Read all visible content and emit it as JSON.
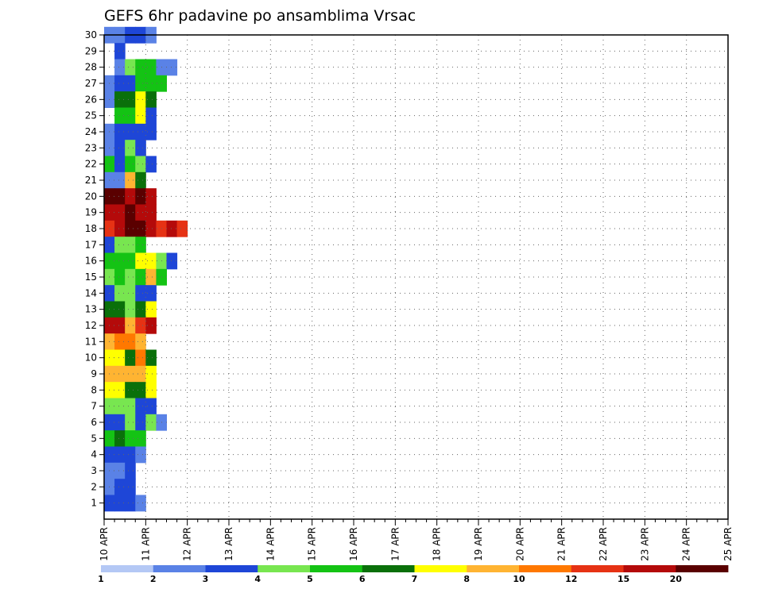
{
  "chart_data": {
    "type": "heatmap",
    "title": "GEFS 6hr padavine po ansamblima Vrsac",
    "x_tick_labels": [
      "10 APR",
      "11 APR",
      "12 APR",
      "13 APR",
      "14 APR",
      "15 APR",
      "16 APR",
      "17 APR",
      "18 APR",
      "19 APR",
      "20 APR",
      "21 APR",
      "22 APR",
      "23 APR",
      "24 APR",
      "25 APR"
    ],
    "y_tick_labels": [
      "1",
      "2",
      "3",
      "4",
      "5",
      "6",
      "7",
      "8",
      "9",
      "10",
      "11",
      "12",
      "13",
      "14",
      "15",
      "16",
      "17",
      "18",
      "19",
      "20",
      "21",
      "22",
      "23",
      "24",
      "25",
      "26",
      "27",
      "28",
      "29",
      "30"
    ],
    "x_range": [
      "10 APR",
      "25 APR"
    ],
    "y_range": [
      0,
      30
    ],
    "grid": true,
    "columns_per_day": 4,
    "colorbar": {
      "levels": [
        "1",
        "2",
        "3",
        "4",
        "5",
        "6",
        "7",
        "8",
        "10",
        "12",
        "15",
        "20"
      ],
      "colors": [
        "#b4c8f5",
        "#5a82e6",
        "#1e46d7",
        "#78e650",
        "#14c314",
        "#0a700a",
        "#ffff00",
        "#ffb432",
        "#ff7800",
        "#e63214",
        "#b40a0a",
        "#5a0000"
      ]
    },
    "cells": [
      [
        0,
        30,
        1
      ],
      [
        1,
        30,
        1
      ],
      [
        2,
        30,
        2
      ],
      [
        3,
        30,
        2
      ],
      [
        4,
        30,
        1
      ],
      [
        1,
        29,
        2
      ],
      [
        1,
        28,
        1
      ],
      [
        2,
        28,
        3
      ],
      [
        3,
        28,
        4
      ],
      [
        4,
        28,
        4
      ],
      [
        5,
        28,
        1
      ],
      [
        6,
        28,
        1
      ],
      [
        0,
        27,
        1
      ],
      [
        1,
        27,
        2
      ],
      [
        2,
        27,
        2
      ],
      [
        3,
        27,
        4
      ],
      [
        4,
        27,
        4
      ],
      [
        5,
        27,
        4
      ],
      [
        0,
        26,
        1
      ],
      [
        1,
        26,
        5
      ],
      [
        2,
        26,
        5
      ],
      [
        3,
        26,
        6
      ],
      [
        4,
        26,
        5
      ],
      [
        1,
        25,
        4
      ],
      [
        2,
        25,
        4
      ],
      [
        3,
        25,
        6
      ],
      [
        4,
        25,
        2
      ],
      [
        0,
        24,
        1
      ],
      [
        1,
        24,
        2
      ],
      [
        2,
        24,
        2
      ],
      [
        3,
        24,
        2
      ],
      [
        4,
        24,
        2
      ],
      [
        0,
        23,
        1
      ],
      [
        1,
        23,
        2
      ],
      [
        2,
        23,
        3
      ],
      [
        3,
        23,
        2
      ],
      [
        0,
        22,
        4
      ],
      [
        1,
        22,
        2
      ],
      [
        2,
        22,
        4
      ],
      [
        3,
        22,
        3
      ],
      [
        4,
        22,
        2
      ],
      [
        0,
        21,
        1
      ],
      [
        1,
        21,
        1
      ],
      [
        2,
        21,
        7
      ],
      [
        3,
        21,
        5
      ],
      [
        0,
        20,
        11
      ],
      [
        1,
        20,
        11
      ],
      [
        2,
        20,
        10
      ],
      [
        3,
        20,
        11
      ],
      [
        4,
        20,
        10
      ],
      [
        0,
        19,
        10
      ],
      [
        1,
        19,
        10
      ],
      [
        2,
        19,
        11
      ],
      [
        3,
        19,
        10
      ],
      [
        4,
        19,
        10
      ],
      [
        0,
        18,
        9
      ],
      [
        1,
        18,
        10
      ],
      [
        2,
        18,
        11
      ],
      [
        3,
        18,
        11
      ],
      [
        4,
        18,
        10
      ],
      [
        5,
        18,
        9
      ],
      [
        6,
        18,
        10
      ],
      [
        7,
        18,
        9
      ],
      [
        0,
        17,
        2
      ],
      [
        1,
        17,
        3
      ],
      [
        2,
        17,
        3
      ],
      [
        3,
        17,
        4
      ],
      [
        0,
        16,
        4
      ],
      [
        1,
        16,
        4
      ],
      [
        2,
        16,
        4
      ],
      [
        3,
        16,
        6
      ],
      [
        4,
        16,
        6
      ],
      [
        5,
        16,
        3
      ],
      [
        6,
        16,
        2
      ],
      [
        0,
        15,
        3
      ],
      [
        1,
        15,
        4
      ],
      [
        2,
        15,
        3
      ],
      [
        3,
        15,
        4
      ],
      [
        4,
        15,
        7
      ],
      [
        5,
        15,
        4
      ],
      [
        0,
        14,
        2
      ],
      [
        1,
        14,
        3
      ],
      [
        2,
        14,
        3
      ],
      [
        3,
        14,
        2
      ],
      [
        4,
        14,
        2
      ],
      [
        0,
        13,
        5
      ],
      [
        1,
        13,
        5
      ],
      [
        2,
        13,
        3
      ],
      [
        3,
        13,
        5
      ],
      [
        4,
        13,
        6
      ],
      [
        0,
        12,
        10
      ],
      [
        1,
        12,
        10
      ],
      [
        2,
        12,
        7
      ],
      [
        3,
        12,
        9
      ],
      [
        4,
        12,
        10
      ],
      [
        0,
        11,
        7
      ],
      [
        1,
        11,
        8
      ],
      [
        2,
        11,
        8
      ],
      [
        3,
        11,
        7
      ],
      [
        0,
        10,
        6
      ],
      [
        1,
        10,
        6
      ],
      [
        2,
        10,
        5
      ],
      [
        3,
        10,
        8
      ],
      [
        4,
        10,
        5
      ],
      [
        0,
        9,
        7
      ],
      [
        1,
        9,
        7
      ],
      [
        2,
        9,
        7
      ],
      [
        3,
        9,
        7
      ],
      [
        4,
        9,
        6
      ],
      [
        0,
        8,
        6
      ],
      [
        1,
        8,
        6
      ],
      [
        2,
        8,
        5
      ],
      [
        3,
        8,
        5
      ],
      [
        4,
        8,
        6
      ],
      [
        0,
        7,
        3
      ],
      [
        1,
        7,
        3
      ],
      [
        2,
        7,
        3
      ],
      [
        3,
        7,
        2
      ],
      [
        4,
        7,
        2
      ],
      [
        0,
        6,
        2
      ],
      [
        1,
        6,
        2
      ],
      [
        2,
        6,
        3
      ],
      [
        3,
        6,
        2
      ],
      [
        4,
        6,
        3
      ],
      [
        5,
        6,
        1
      ],
      [
        0,
        5,
        4
      ],
      [
        1,
        5,
        5
      ],
      [
        2,
        5,
        4
      ],
      [
        3,
        5,
        4
      ],
      [
        0,
        4,
        2
      ],
      [
        1,
        4,
        2
      ],
      [
        2,
        4,
        2
      ],
      [
        3,
        4,
        1
      ],
      [
        0,
        3,
        1
      ],
      [
        1,
        3,
        1
      ],
      [
        2,
        3,
        2
      ],
      [
        0,
        2,
        1
      ],
      [
        1,
        2,
        2
      ],
      [
        2,
        2,
        2
      ],
      [
        0,
        1,
        2
      ],
      [
        1,
        1,
        2
      ],
      [
        2,
        1,
        2
      ],
      [
        3,
        1,
        1
      ]
    ]
  }
}
